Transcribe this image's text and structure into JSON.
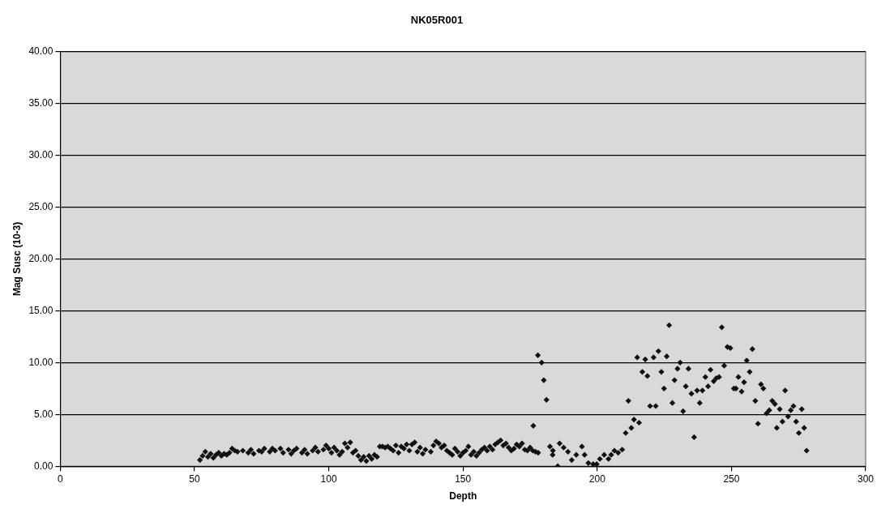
{
  "chart_data": {
    "type": "scatter",
    "title": "NK05R001",
    "xlabel": "Depth",
    "ylabel": "Mag Susc (10-3)",
    "xlim": [
      0,
      300
    ],
    "xticks": [
      0,
      50,
      100,
      150,
      200,
      250,
      300
    ],
    "ylim": [
      0,
      40
    ],
    "yticks": [
      {
        "value": 0,
        "label": "0.00"
      },
      {
        "value": 5,
        "label": "5.00"
      },
      {
        "value": 10,
        "label": "10.00"
      },
      {
        "value": 15,
        "label": "15.00"
      },
      {
        "value": 20,
        "label": "20.00"
      },
      {
        "value": 25,
        "label": "25.00"
      },
      {
        "value": 30,
        "label": "30.00"
      },
      {
        "value": 35,
        "label": "35.00"
      },
      {
        "value": 40,
        "label": "40.00"
      }
    ],
    "grid": "y",
    "legend": false,
    "marker": "diamond",
    "series": [
      {
        "color": "#111111",
        "x": [
          52,
          53,
          54,
          55,
          56,
          57,
          58,
          59,
          60,
          61,
          62,
          63,
          64,
          65,
          66,
          68,
          70,
          71,
          72,
          74,
          75,
          76,
          78,
          79,
          80,
          82,
          83,
          85,
          86,
          87,
          88,
          90,
          91,
          92,
          94,
          95,
          96,
          98,
          99,
          100,
          101,
          102,
          103,
          104,
          105,
          106,
          107,
          108,
          109,
          110,
          111,
          112,
          113,
          114,
          115,
          116,
          117,
          118,
          119,
          120,
          121,
          122,
          123,
          124,
          125,
          126,
          127,
          128,
          129,
          130,
          131,
          132,
          133,
          134,
          135,
          136,
          138,
          139,
          140,
          141,
          142,
          143,
          144,
          145,
          146,
          147,
          148,
          149,
          150,
          151,
          152,
          153,
          154,
          155,
          156,
          157,
          158,
          159,
          160,
          161,
          162,
          163,
          164,
          165,
          166,
          167,
          168,
          169,
          170,
          171,
          172,
          173,
          174,
          175,
          176,
          177,
          176.2,
          178,
          177.9,
          179.3,
          180.1,
          181.1,
          182.4,
          183.4,
          183.5,
          185.3,
          186,
          187.5,
          189.1,
          190.5,
          192.2,
          194.3,
          195.3,
          196.7,
          198.5,
          199.8,
          201,
          202.6,
          204.2,
          205.2,
          206.4,
          207.8,
          209.3,
          210.6,
          211.6,
          212.7,
          213.7,
          214.9,
          215.6,
          216.8,
          217.9,
          218.7,
          219.7,
          221,
          221.8,
          222.8,
          223.9,
          224.9,
          225.9,
          226.8,
          228,
          228.8,
          229.9,
          230.9,
          232,
          233,
          234,
          235.1,
          236.1,
          237.2,
          238.2,
          239.2,
          240.3,
          241.3,
          242.2,
          243.4,
          244.4,
          245.4,
          246.4,
          247.3,
          248.5,
          249.6,
          250.9,
          251.7,
          252.6,
          253.8,
          254.7,
          255.7,
          256.8,
          257.8,
          258.9,
          259.9,
          261,
          261.9,
          263.1,
          264.1,
          265.2,
          266.2,
          266.9,
          268,
          269,
          270,
          271.1,
          272.1,
          273.1,
          274.1,
          275.1,
          276.2,
          277.1,
          278
        ],
        "values": [
          0.6,
          1.0,
          1.4,
          0.9,
          1.2,
          0.8,
          1.1,
          1.3,
          1.0,
          1.2,
          1.1,
          1.3,
          1.7,
          1.5,
          1.4,
          1.5,
          1.3,
          1.6,
          1.2,
          1.5,
          1.4,
          1.7,
          1.4,
          1.7,
          1.5,
          1.7,
          1.3,
          1.6,
          1.2,
          1.5,
          1.7,
          1.3,
          1.6,
          1.2,
          1.5,
          1.8,
          1.4,
          1.6,
          2.0,
          1.7,
          1.3,
          1.8,
          1.5,
          1.1,
          1.4,
          2.2,
          1.8,
          2.3,
          1.3,
          1.5,
          1.0,
          0.6,
          0.9,
          0.5,
          1.0,
          0.7,
          1.1,
          0.9,
          1.9,
          1.9,
          1.8,
          1.9,
          1.7,
          1.5,
          2.0,
          1.3,
          1.9,
          1.7,
          2.1,
          1.5,
          2.1,
          2.3,
          1.4,
          1.8,
          1.2,
          1.6,
          1.4,
          2.0,
          2.4,
          2.2,
          1.8,
          2.0,
          1.5,
          1.3,
          1.1,
          1.7,
          1.4,
          1.0,
          1.3,
          1.5,
          1.9,
          1.1,
          1.4,
          1.0,
          1.3,
          1.6,
          1.8,
          1.5,
          1.9,
          1.6,
          2.1,
          2.3,
          2.5,
          2.0,
          2.2,
          1.8,
          1.5,
          1.7,
          2.1,
          1.9,
          2.2,
          1.6,
          1.5,
          1.8,
          1.5,
          1.4,
          3.9,
          1.3,
          10.7,
          10.0,
          8.3,
          6.4,
          1.9,
          1.1,
          1.5,
          0.0,
          2.2,
          1.8,
          1.4,
          0.6,
          1.1,
          1.9,
          1.1,
          0.3,
          0.2,
          0.2,
          0.7,
          1.1,
          0.7,
          1.1,
          1.5,
          1.3,
          1.6,
          3.2,
          6.3,
          3.7,
          4.5,
          10.5,
          4.2,
          9.1,
          10.3,
          8.7,
          5.8,
          10.5,
          5.8,
          11.1,
          9.1,
          7.5,
          10.6,
          13.6,
          6.1,
          8.3,
          9.4,
          10.0,
          5.3,
          7.7,
          9.4,
          7.0,
          2.8,
          7.3,
          6.1,
          7.3,
          8.6,
          7.7,
          9.3,
          8.2,
          8.5,
          8.6,
          13.4,
          9.7,
          11.5,
          11.4,
          7.5,
          7.5,
          8.6,
          7.2,
          8.1,
          10.2,
          9.1,
          11.3,
          6.3,
          4.1,
          7.9,
          7.5,
          5.1,
          5.4,
          6.3,
          6.0,
          3.7,
          5.5,
          4.3,
          7.3,
          4.8,
          5.4,
          5.8,
          4.3,
          3.2,
          5.5,
          3.7,
          1.5
        ]
      }
    ]
  }
}
